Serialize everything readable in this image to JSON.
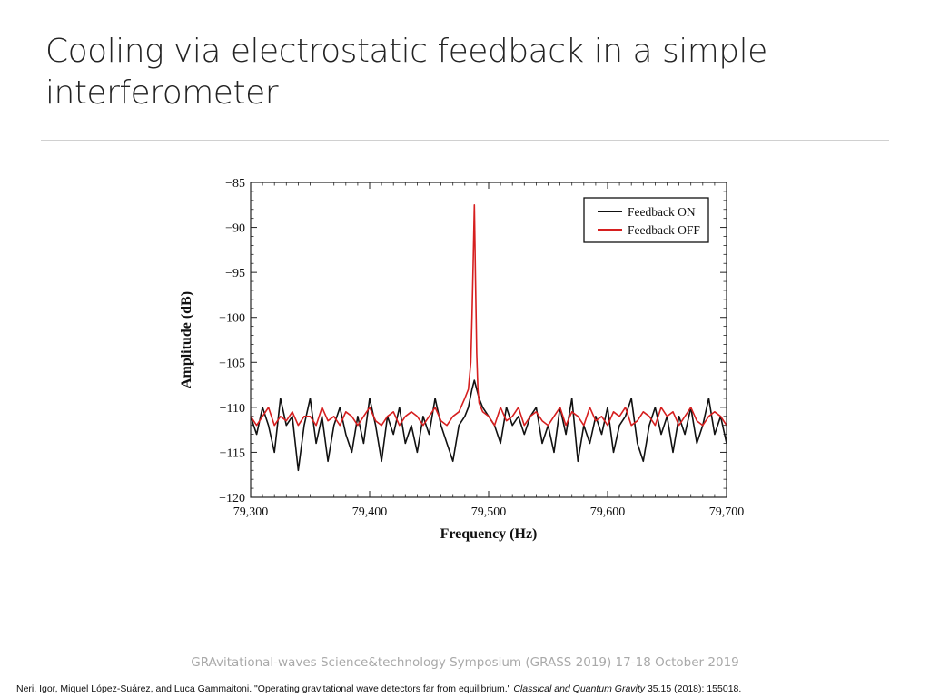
{
  "slide": {
    "title": "Cooling via electrostatic feedback in a simple interferometer",
    "footer": "GRAvitational-waves Science&technology Symposium (GRASS 2019) 17-18 October 2019",
    "citation_pre": "Neri, Igor, Miquel López-Suárez, and Luca Gammaitoni. \"Operating gravitational wave detectors far from equilibrium.\" ",
    "citation_journal": "Classical and Quantum Gravity",
    "citation_post": " 35.15 (2018): 155018."
  },
  "chart_data": {
    "type": "line",
    "xlabel": "Frequency (Hz)",
    "ylabel": "Amplitude (dB)",
    "xlim": [
      79300,
      79700
    ],
    "ylim": [
      -120,
      -85
    ],
    "xticks": [
      79300,
      79400,
      79500,
      79600,
      79700
    ],
    "xtick_labels": [
      "79,300",
      "79,400",
      "79,500",
      "79,600",
      "79,700"
    ],
    "yticks": [
      -85,
      -90,
      -95,
      -100,
      -105,
      -110,
      -115,
      -120
    ],
    "ytick_labels": [
      "−85",
      "−90",
      "−95",
      "−100",
      "−105",
      "−110",
      "−115",
      "−120"
    ],
    "legend_position": "top-right",
    "series": [
      {
        "name": "Feedback ON",
        "color": "#111111",
        "x": [
          79300,
          79305,
          79310,
          79315,
          79320,
          79325,
          79330,
          79335,
          79340,
          79345,
          79350,
          79355,
          79360,
          79365,
          79370,
          79375,
          79380,
          79385,
          79390,
          79395,
          79400,
          79405,
          79410,
          79415,
          79420,
          79425,
          79430,
          79435,
          79440,
          79445,
          79450,
          79455,
          79460,
          79465,
          79470,
          79475,
          79480,
          79483,
          79486,
          79488,
          79490,
          79492,
          79495,
          79500,
          79505,
          79510,
          79515,
          79520,
          79525,
          79530,
          79535,
          79540,
          79545,
          79550,
          79555,
          79560,
          79565,
          79570,
          79575,
          79580,
          79585,
          79590,
          79595,
          79600,
          79605,
          79610,
          79615,
          79620,
          79625,
          79630,
          79635,
          79640,
          79645,
          79650,
          79655,
          79660,
          79665,
          79670,
          79675,
          79680,
          79685,
          79690,
          79695,
          79700
        ],
        "y": [
          -111,
          -113,
          -110,
          -112,
          -115,
          -109,
          -112,
          -111,
          -117,
          -112,
          -109,
          -114,
          -111,
          -116,
          -112,
          -110,
          -113,
          -115,
          -111,
          -114,
          -109,
          -112,
          -116,
          -111,
          -113,
          -110,
          -114,
          -112,
          -115,
          -111,
          -113,
          -109,
          -112,
          -114,
          -116,
          -112,
          -111,
          -110,
          -108,
          -107,
          -108,
          -109,
          -110,
          -111,
          -112,
          -114,
          -110,
          -112,
          -111,
          -113,
          -111,
          -110,
          -114,
          -112,
          -115,
          -110,
          -113,
          -109,
          -116,
          -112,
          -114,
          -111,
          -113,
          -110,
          -115,
          -112,
          -111,
          -109,
          -114,
          -116,
          -112,
          -110,
          -113,
          -111,
          -115,
          -111,
          -113,
          -110,
          -114,
          -112,
          -109,
          -113,
          -111,
          -114
        ]
      },
      {
        "name": "Feedback OFF",
        "color": "#d61f1f",
        "x": [
          79300,
          79305,
          79310,
          79315,
          79320,
          79325,
          79330,
          79335,
          79340,
          79345,
          79350,
          79355,
          79360,
          79365,
          79370,
          79375,
          79380,
          79385,
          79390,
          79395,
          79400,
          79405,
          79410,
          79415,
          79420,
          79425,
          79430,
          79435,
          79440,
          79445,
          79450,
          79455,
          79460,
          79465,
          79470,
          79475,
          79480,
          79483,
          79485,
          79486,
          79487,
          79488,
          79489,
          79490,
          79491,
          79492,
          79495,
          79500,
          79505,
          79510,
          79515,
          79520,
          79525,
          79530,
          79535,
          79540,
          79545,
          79550,
          79555,
          79560,
          79565,
          79570,
          79575,
          79580,
          79585,
          79590,
          79595,
          79600,
          79605,
          79610,
          79615,
          79620,
          79625,
          79630,
          79635,
          79640,
          79645,
          79650,
          79655,
          79660,
          79665,
          79670,
          79675,
          79680,
          79685,
          79690,
          79695,
          79700
        ],
        "y": [
          -111,
          -112,
          -111,
          -110,
          -112,
          -111,
          -111.5,
          -110.5,
          -112,
          -111,
          -111,
          -112,
          -110,
          -111.5,
          -111,
          -112,
          -110.5,
          -111,
          -112,
          -111,
          -110,
          -111.5,
          -112,
          -111,
          -110.5,
          -112,
          -111,
          -110.5,
          -111,
          -112,
          -111,
          -110,
          -111.5,
          -112,
          -111,
          -110.5,
          -109,
          -108,
          -105,
          -100,
          -94,
          -87.5,
          -96,
          -104,
          -108,
          -109.5,
          -110.5,
          -111,
          -112,
          -110,
          -111.5,
          -111,
          -110,
          -112,
          -111,
          -110.5,
          -111.5,
          -112,
          -111,
          -110,
          -112,
          -110.5,
          -111,
          -112,
          -110,
          -111.5,
          -111,
          -112,
          -110.5,
          -111,
          -110,
          -112,
          -111.5,
          -110.5,
          -111,
          -112,
          -110,
          -111,
          -110.5,
          -112,
          -111,
          -110,
          -111.5,
          -112,
          -111,
          -110.5,
          -111,
          -112
        ]
      }
    ]
  }
}
